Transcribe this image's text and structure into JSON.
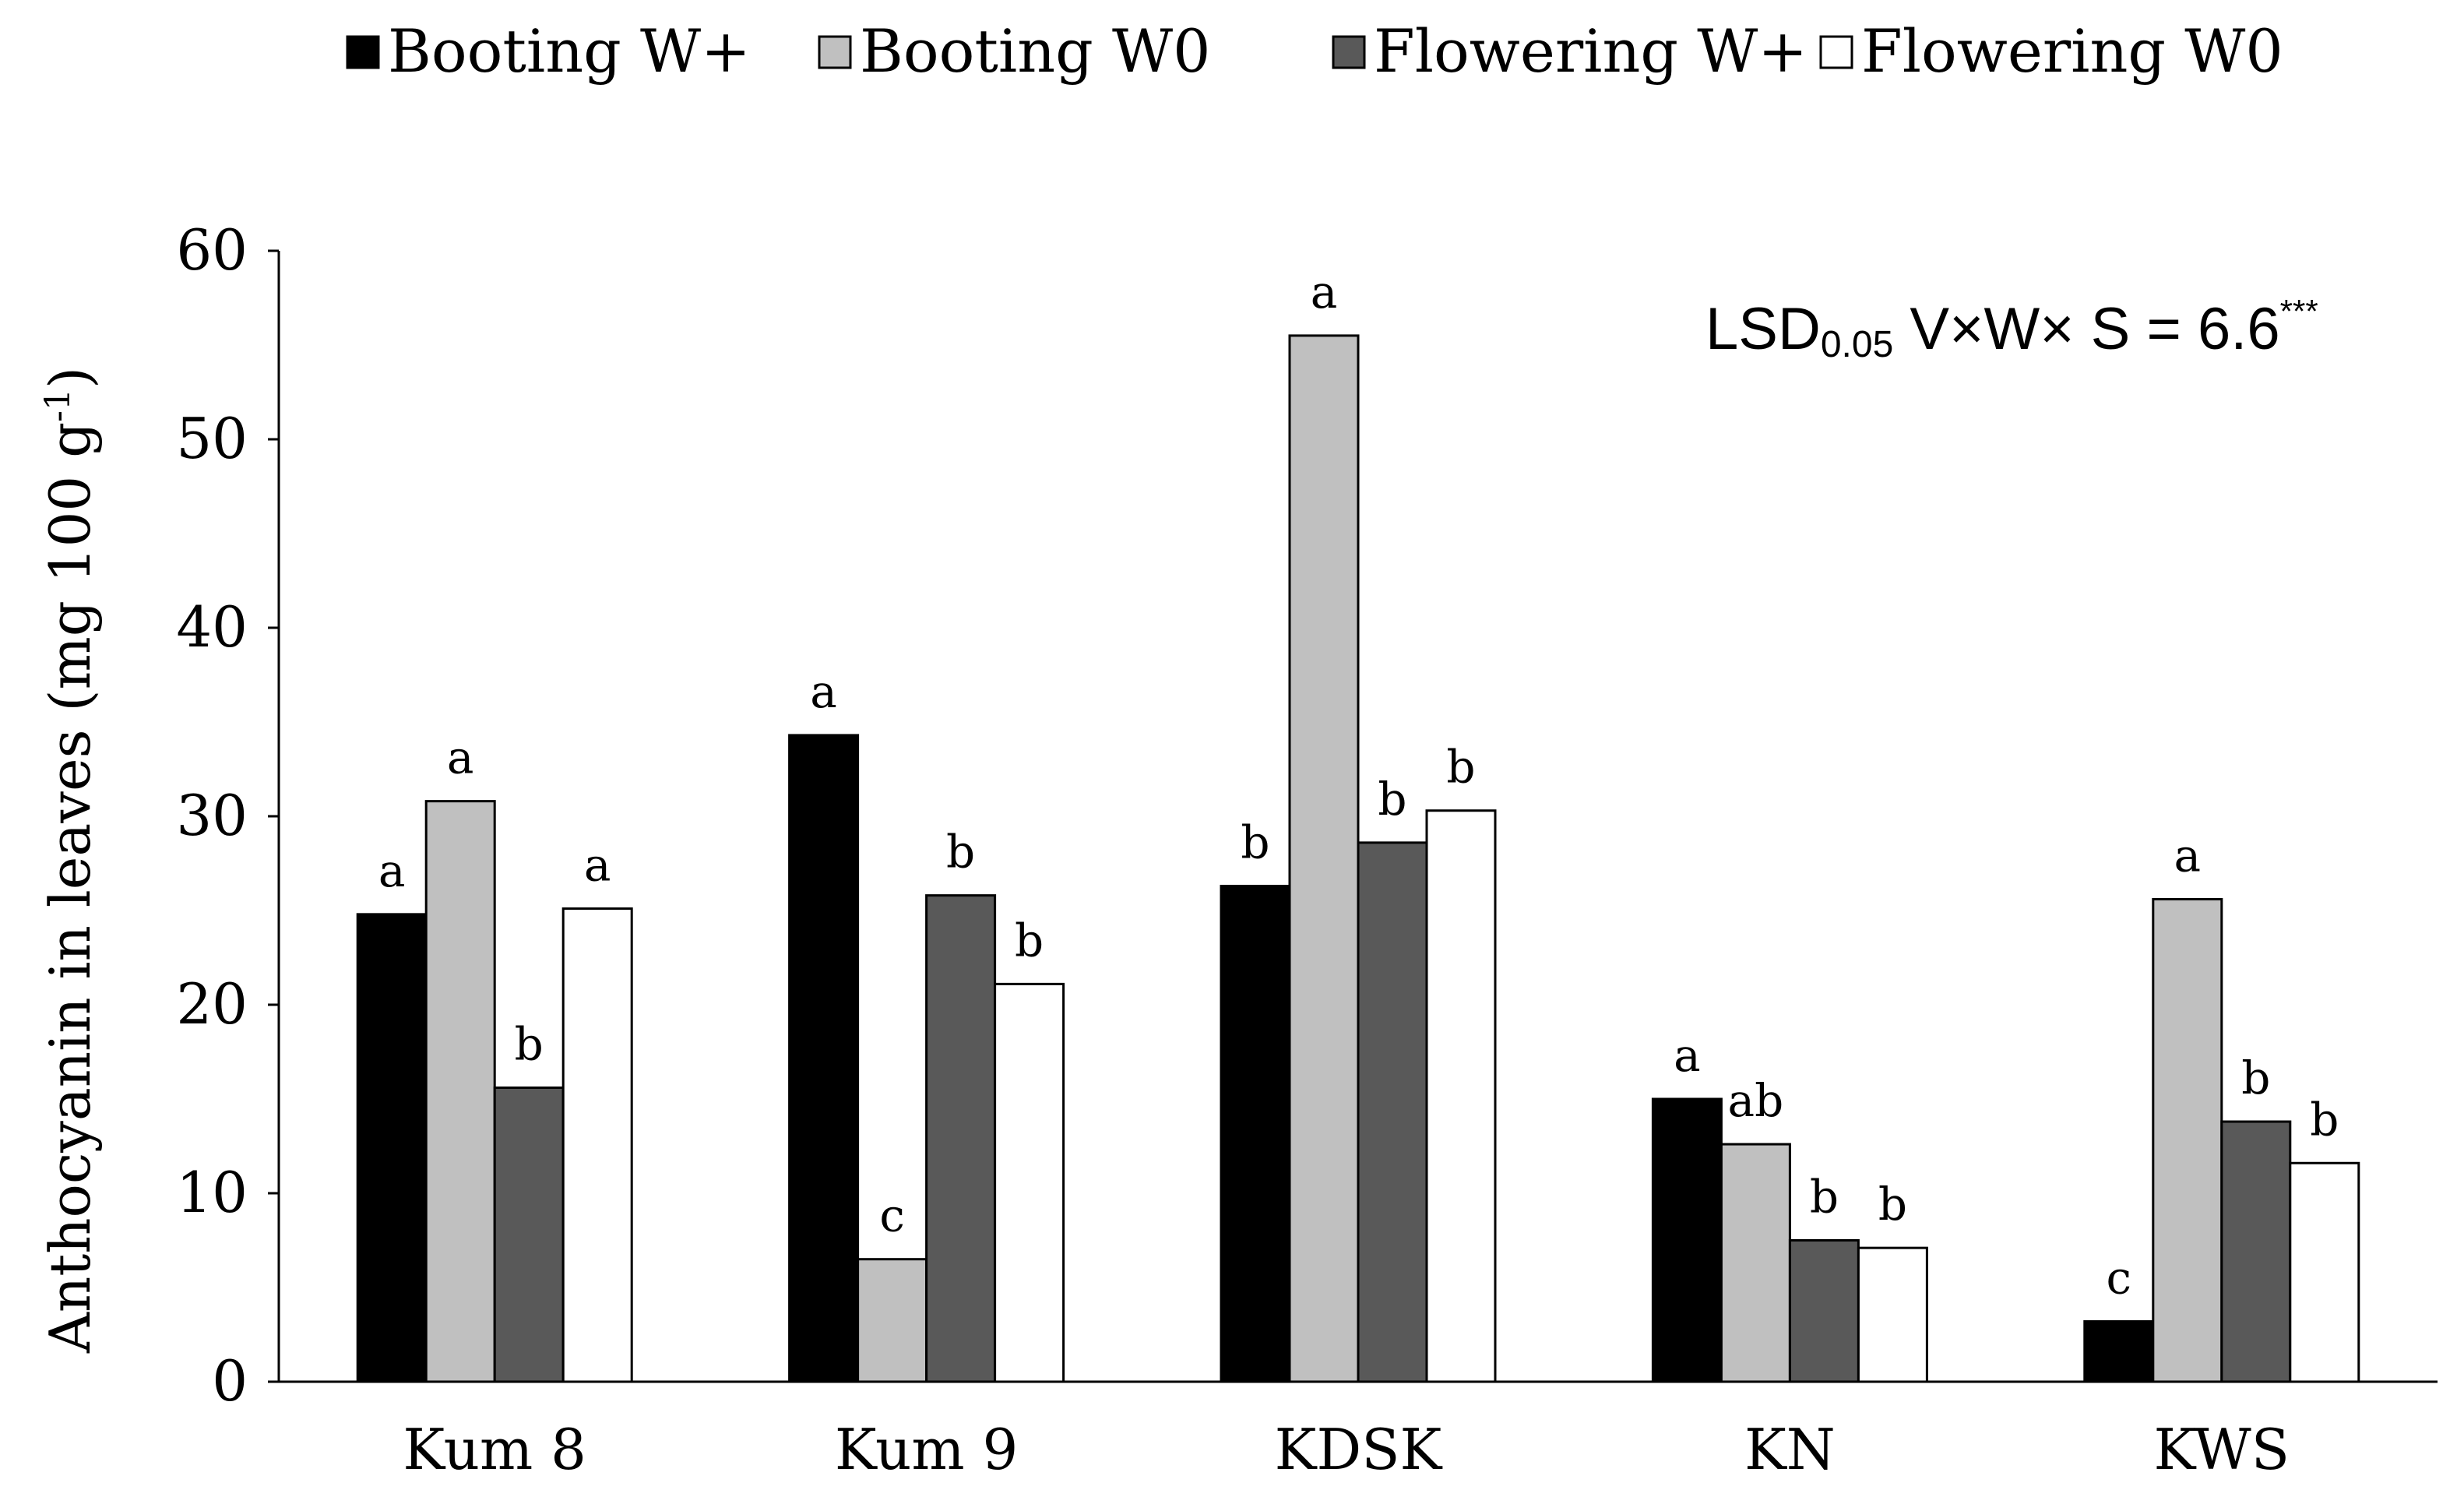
{
  "chart_data": {
    "type": "bar",
    "title": "",
    "xlabel": "",
    "ylabel": "Anthocyanin in leaves (mg 100 g",
    "ylabel_superscript": "-1",
    "ylabel_close": ")",
    "ylim": [
      0,
      60
    ],
    "yticks": [
      0,
      10,
      20,
      30,
      40,
      50,
      60
    ],
    "grid": false,
    "legend_position": "top",
    "categories": [
      "Kum 8",
      "Kum 9",
      "KDSK",
      "KN",
      "KWS"
    ],
    "series": [
      {
        "name": "Booting W+",
        "color": "#000000",
        "values": [
          24.8,
          34.3,
          26.3,
          15.0,
          3.2
        ],
        "letters": [
          "a",
          "a",
          "b",
          "a",
          "c"
        ]
      },
      {
        "name": "Booting W0",
        "color": "#c0c0c0",
        "values": [
          30.8,
          6.5,
          55.5,
          12.6,
          25.6
        ],
        "letters": [
          "a",
          "c",
          "a",
          "ab",
          "a"
        ]
      },
      {
        "name": "Flowering W+",
        "color": "#595959",
        "values": [
          15.6,
          25.8,
          28.6,
          7.5,
          13.8
        ],
        "letters": [
          "b",
          "b",
          "b",
          "b",
          "b"
        ]
      },
      {
        "name": "Flowering W0",
        "color": "#ffffff",
        "values": [
          25.1,
          21.1,
          30.3,
          7.1,
          11.6
        ],
        "letters": [
          "a",
          "b",
          "b",
          "b",
          "b"
        ]
      }
    ],
    "annotation": {
      "main": "LSD",
      "subscript": "0.05",
      "rest": " V×W× S = 6.6",
      "superscript": "***"
    }
  }
}
